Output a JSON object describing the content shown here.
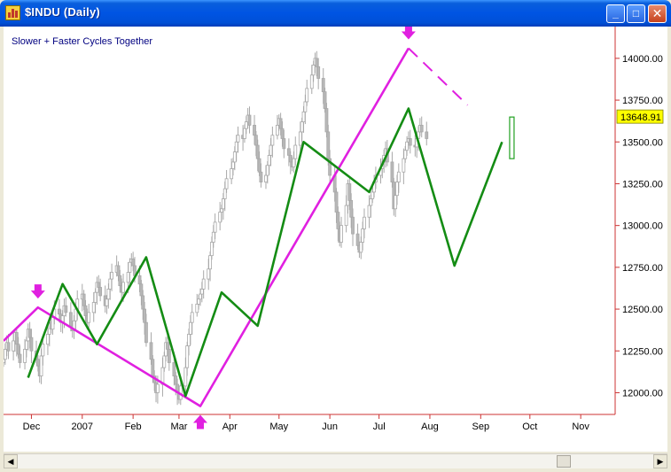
{
  "window": {
    "title": "$INDU (Daily)"
  },
  "title_buttons": {
    "minimize": "_",
    "maximize": "□",
    "close": "✕"
  },
  "chart_data": {
    "type": "line",
    "annotation": "Slower + Faster Cycles Together",
    "y_ticks": [
      12000,
      12250,
      12500,
      12750,
      13000,
      13250,
      13500,
      13750,
      14000
    ],
    "y_tick_labels": [
      "12000.00",
      "12250.00",
      "12500.00",
      "12750.00",
      "13000.00",
      "13250.00",
      "13500.00",
      "13750.00",
      "14000.00"
    ],
    "ylim": [
      11870,
      14190
    ],
    "x_range": [
      "2006-11-14",
      "2007-11-22"
    ],
    "x_tick_labels": [
      {
        "date": "2006-12-01",
        "label": "Dec"
      },
      {
        "date": "2007-01-01",
        "label": "2007"
      },
      {
        "date": "2007-02-01",
        "label": "Feb"
      },
      {
        "date": "2007-03-01",
        "label": "Mar"
      },
      {
        "date": "2007-04-01",
        "label": "Apr"
      },
      {
        "date": "2007-05-01",
        "label": "May"
      },
      {
        "date": "2007-06-01",
        "label": "Jun"
      },
      {
        "date": "2007-07-01",
        "label": "Jul"
      },
      {
        "date": "2007-08-01",
        "label": "Aug"
      },
      {
        "date": "2007-09-01",
        "label": "Sep"
      },
      {
        "date": "2007-10-01",
        "label": "Oct"
      },
      {
        "date": "2007-11-01",
        "label": "Nov"
      }
    ],
    "last_price": 13648.91,
    "last_price_label": "13648.91",
    "colors": {
      "slow": "#e020e0",
      "fast": "#148c14",
      "axis": "#cc3333",
      "price_box": "#ffff00",
      "last_candle": "#21a121"
    },
    "series": [
      {
        "points": [
          [
            "2006-11-14",
            12310
          ],
          [
            "2006-12-05",
            12510
          ],
          [
            "2007-03-14",
            11920
          ],
          [
            "2007-07-19",
            14060
          ]
        ],
        "projection": [
          [
            "2007-07-19",
            14060
          ],
          [
            "2007-08-24",
            13720
          ]
        ]
      },
      {
        "points": [
          [
            "2006-11-29",
            12090
          ],
          [
            "2006-12-20",
            12650
          ],
          [
            "2007-01-10",
            12290
          ],
          [
            "2007-02-09",
            12810
          ],
          [
            "2007-03-05",
            11980
          ],
          [
            "2007-03-27",
            12600
          ],
          [
            "2007-04-18",
            12400
          ],
          [
            "2007-05-16",
            13500
          ],
          [
            "2007-06-25",
            13200
          ],
          [
            "2007-07-19",
            13700
          ],
          [
            "2007-08-16",
            12760
          ],
          [
            "2007-09-14",
            13500
          ]
        ],
        "projection": []
      }
    ],
    "markers": [
      {
        "date": "2006-12-05",
        "price": 12510,
        "dir": "down"
      },
      {
        "date": "2007-03-14",
        "price": 11920,
        "dir": "up"
      },
      {
        "date": "2007-07-19",
        "price": 14060,
        "dir": "down"
      }
    ],
    "candles": {
      "start": "2006-11-14",
      "closes": [
        12200,
        12260,
        12300,
        12250,
        12310,
        12360,
        12290,
        12230,
        12180,
        12260,
        12310,
        12380,
        12330,
        12250,
        12200,
        12160,
        12100,
        12220,
        12290,
        12350,
        12420,
        12380,
        12450,
        12500,
        12470,
        12420,
        12460,
        12520,
        12480,
        12400,
        12370,
        12430,
        12500,
        12560,
        12590,
        12520,
        12460,
        12420,
        12480,
        12540,
        12600,
        12660,
        12630,
        12580,
        12520,
        12560,
        12620,
        12680,
        12720,
        12760,
        12700,
        12640,
        12600,
        12660,
        12720,
        12780,
        12800,
        12760,
        12700,
        12650,
        12580,
        12500,
        12420,
        12300,
        12200,
        12100,
        12060,
        12000,
        12050,
        12150,
        12220,
        12300,
        12260,
        12180,
        12100,
        12050,
        12000,
        11960,
        12040,
        12150,
        12280,
        12350,
        12420,
        12480,
        12530,
        12560,
        12590,
        12620,
        12680,
        12740,
        12820,
        12900,
        12960,
        13020,
        13080,
        13100,
        13160,
        13220,
        13280,
        13340,
        13380,
        13440,
        13500,
        13540,
        13520,
        13580,
        13620,
        13660,
        13600,
        13540,
        13480,
        13400,
        13320,
        13260,
        13300,
        13360,
        13420,
        13480,
        13540,
        13600,
        13640,
        13580,
        13520,
        13460,
        13420,
        13380,
        13350,
        13400,
        13480,
        13560,
        13620,
        13680,
        13740,
        13820,
        13900,
        13960,
        14000,
        13950,
        13880,
        13800,
        13700,
        13560,
        13400,
        13300,
        13200,
        13080,
        12980,
        12900,
        13000,
        13120,
        13250,
        13150,
        13050,
        12950,
        12880,
        12840,
        12900,
        12980,
        13050,
        13120,
        13160,
        13200,
        13260,
        13300,
        13340,
        13380,
        13420,
        13460,
        13380,
        13260,
        13100,
        13180,
        13260,
        13320,
        13400,
        13450,
        13500,
        13520,
        13480,
        13470,
        13520,
        13560,
        13600,
        13560,
        13520
      ]
    }
  }
}
